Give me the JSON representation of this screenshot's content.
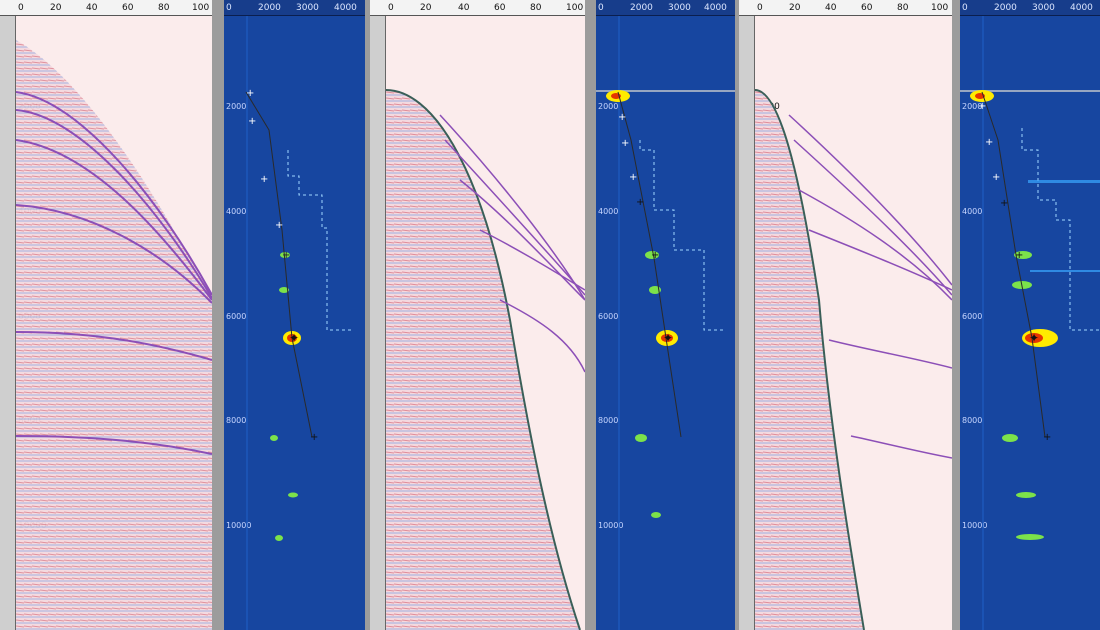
{
  "colors": {
    "gather_bg": "#fbecec",
    "semblance_bg": "#1746a0",
    "moveout": "#8c4fb7",
    "separator": "#9c9c9c",
    "highlight": "#ffea00"
  },
  "gather_axis": {
    "offsets": [
      "0",
      "20",
      "40",
      "60",
      "80",
      "100"
    ],
    "times": [
      "2000",
      "4000",
      "6000",
      "8000",
      "10000"
    ]
  },
  "semblance_axis": {
    "velocities": [
      "0",
      "2000",
      "3000",
      "4000"
    ],
    "times": [
      "2000",
      "4000",
      "6000",
      "8000",
      "10000"
    ]
  },
  "panels": [
    {
      "name": "gather-panel-1",
      "type": "gather"
    },
    {
      "name": "semblance-panel-1",
      "type": "semblance"
    },
    {
      "name": "gather-panel-2",
      "type": "gather"
    },
    {
      "name": "semblance-panel-2",
      "type": "semblance"
    },
    {
      "name": "gather-panel-3",
      "type": "gather"
    },
    {
      "name": "semblance-panel-3",
      "type": "semblance"
    }
  ]
}
